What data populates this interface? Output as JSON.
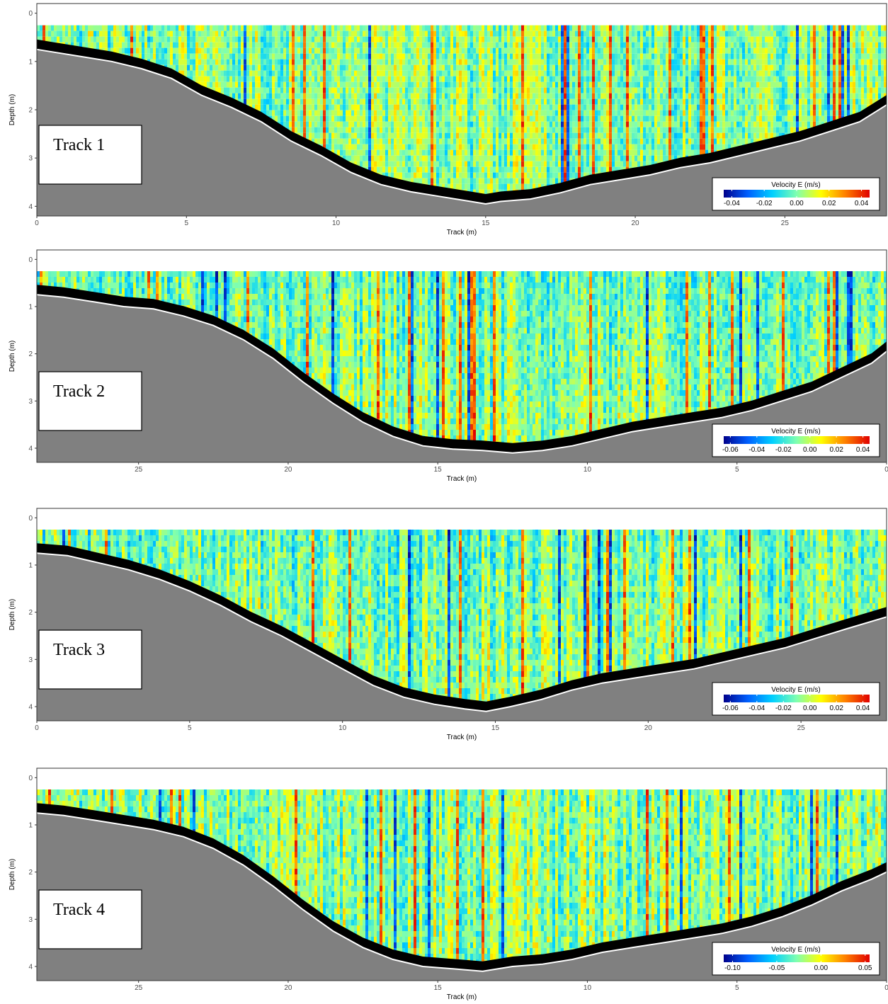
{
  "chart_data": [
    {
      "type": "heatmap",
      "panel_label": "Track 1",
      "xlabel": "Track (m)",
      "ylabel": "Depth (m)",
      "xlim": [
        0,
        28.4
      ],
      "x_reversed": false,
      "ylim": [
        4.2,
        -0.2
      ],
      "x_ticks": [
        0,
        5,
        10,
        15,
        20,
        25
      ],
      "y_ticks": [
        0,
        1,
        2,
        3,
        4
      ],
      "legend_position": "bottom-right",
      "colorbar": {
        "title": "Velocity E (m/s)",
        "min": -0.045,
        "max": 0.045,
        "ticks": [
          "-0.04",
          "-0.02",
          "0.00",
          "0.02",
          "0.04"
        ],
        "tick_values": [
          -0.04,
          -0.02,
          0.0,
          0.02,
          0.04
        ],
        "colormap": [
          "#00008b",
          "#0060ff",
          "#00d0ff",
          "#7fffb0",
          "#ffff00",
          "#ff8000",
          "#e00000"
        ]
      },
      "surface_depth": 0.25,
      "bottom_profile": {
        "x": [
          0,
          0.5,
          1.5,
          2.5,
          3.5,
          4.5,
          5.5,
          6.5,
          7.5,
          8.5,
          9.5,
          10.5,
          11.5,
          12.5,
          13.5,
          14.5,
          15.0,
          15.5,
          16.5,
          17.5,
          18.5,
          19.5,
          20.5,
          21.5,
          22.5,
          23.5,
          24.5,
          25.5,
          26.5,
          27.5,
          28.4
        ],
        "depth": [
          0.75,
          0.8,
          0.9,
          1.0,
          1.15,
          1.35,
          1.7,
          1.95,
          2.25,
          2.65,
          2.95,
          3.3,
          3.55,
          3.7,
          3.8,
          3.9,
          3.95,
          3.9,
          3.85,
          3.72,
          3.55,
          3.45,
          3.35,
          3.2,
          3.1,
          2.95,
          2.8,
          2.65,
          2.45,
          2.25,
          1.9
        ]
      }
    },
    {
      "type": "heatmap",
      "panel_label": "Track 2",
      "xlabel": "Track (m)",
      "ylabel": "Depth (m)",
      "xlim": [
        28.4,
        0
      ],
      "x_reversed": true,
      "ylim": [
        4.3,
        -0.2
      ],
      "x_ticks": [
        25,
        20,
        15,
        10,
        5,
        0
      ],
      "y_ticks": [
        0,
        1,
        2,
        3,
        4
      ],
      "legend_position": "bottom-right",
      "colorbar": {
        "title": "Velocity E (m/s)",
        "min": -0.065,
        "max": 0.045,
        "ticks": [
          "-0.06",
          "-0.04",
          "-0.02",
          "0.00",
          "0.02",
          "0.04"
        ],
        "tick_values": [
          -0.06,
          -0.04,
          -0.02,
          0.0,
          0.02,
          0.04
        ],
        "colormap": [
          "#00008b",
          "#0060ff",
          "#00d0ff",
          "#7fffb0",
          "#ffff00",
          "#ff8000",
          "#e00000"
        ]
      },
      "surface_depth": 0.25,
      "bottom_profile": {
        "x": [
          28.4,
          27.5,
          26.5,
          25.5,
          24.5,
          23.5,
          22.5,
          21.5,
          20.5,
          19.5,
          18.5,
          17.5,
          16.5,
          15.5,
          14.5,
          13.5,
          12.5,
          11.5,
          10.5,
          9.5,
          8.5,
          7.5,
          6.5,
          5.5,
          4.5,
          3.5,
          2.5,
          1.5,
          0.5,
          0
        ],
        "depth": [
          0.75,
          0.8,
          0.9,
          1.0,
          1.05,
          1.2,
          1.4,
          1.7,
          2.1,
          2.6,
          3.05,
          3.45,
          3.75,
          3.95,
          4.02,
          4.05,
          4.1,
          4.05,
          3.95,
          3.8,
          3.65,
          3.55,
          3.45,
          3.35,
          3.2,
          3.0,
          2.8,
          2.5,
          2.2,
          1.95
        ]
      }
    },
    {
      "type": "heatmap",
      "panel_label": "Track 3",
      "xlabel": "Track (m)",
      "ylabel": "Depth (m)",
      "xlim": [
        0,
        27.8
      ],
      "x_reversed": false,
      "ylim": [
        4.3,
        -0.2
      ],
      "x_ticks": [
        0,
        5,
        10,
        15,
        20,
        25
      ],
      "y_ticks": [
        0,
        1,
        2,
        3,
        4
      ],
      "legend_position": "bottom-right",
      "colorbar": {
        "title": "Velocity E (m/s)",
        "min": -0.065,
        "max": 0.045,
        "ticks": [
          "-0.06",
          "-0.04",
          "-0.02",
          "0.00",
          "0.02",
          "0.04"
        ],
        "tick_values": [
          -0.06,
          -0.04,
          -0.02,
          0.0,
          0.02,
          0.04
        ],
        "colormap": [
          "#00008b",
          "#0060ff",
          "#00d0ff",
          "#7fffb0",
          "#ffff00",
          "#ff8000",
          "#e00000"
        ]
      },
      "surface_depth": 0.25,
      "bottom_profile": {
        "x": [
          0,
          1,
          2,
          3,
          4,
          5,
          6,
          7,
          8,
          9,
          10,
          11,
          12,
          13,
          14,
          14.7,
          15.5,
          16.5,
          17.5,
          18.5,
          19.5,
          20.5,
          21.5,
          22.5,
          23.5,
          24.5,
          25.5,
          26.5,
          27.8
        ],
        "depth": [
          0.75,
          0.8,
          0.95,
          1.1,
          1.3,
          1.55,
          1.85,
          2.2,
          2.5,
          2.85,
          3.2,
          3.55,
          3.8,
          3.95,
          4.05,
          4.1,
          4.0,
          3.85,
          3.65,
          3.5,
          3.4,
          3.3,
          3.2,
          3.05,
          2.9,
          2.75,
          2.55,
          2.35,
          2.1
        ]
      }
    },
    {
      "type": "heatmap",
      "panel_label": "Track 4",
      "xlabel": "Track (m)",
      "ylabel": "Depth (m)",
      "xlim": [
        28.4,
        0
      ],
      "x_reversed": true,
      "ylim": [
        4.3,
        -0.2
      ],
      "x_ticks": [
        25,
        20,
        15,
        10,
        5,
        0
      ],
      "y_ticks": [
        0,
        1,
        2,
        3,
        4
      ],
      "legend_position": "bottom-right",
      "colorbar": {
        "title": "Velocity E (m/s)",
        "min": -0.11,
        "max": 0.055,
        "ticks": [
          "-0.10",
          "-0.05",
          "0.00",
          "0.05"
        ],
        "tick_values": [
          -0.1,
          -0.05,
          0.0,
          0.05
        ],
        "colormap": [
          "#00008b",
          "#0060ff",
          "#00d0ff",
          "#7fffb0",
          "#ffff00",
          "#ff8000",
          "#e00000"
        ]
      },
      "surface_depth": 0.25,
      "bottom_profile": {
        "x": [
          28.4,
          27.5,
          26.5,
          25.5,
          24.5,
          23.5,
          22.5,
          21.5,
          20.5,
          19.5,
          18.5,
          17.5,
          16.5,
          15.5,
          14.5,
          13.5,
          12.5,
          11.5,
          10.5,
          9.5,
          8.5,
          7.5,
          6.5,
          5.5,
          4.5,
          3.5,
          2.5,
          1.5,
          0.5,
          0
        ],
        "depth": [
          0.75,
          0.8,
          0.9,
          1.0,
          1.1,
          1.25,
          1.5,
          1.85,
          2.3,
          2.8,
          3.25,
          3.6,
          3.85,
          4.0,
          4.05,
          4.1,
          4.0,
          3.95,
          3.85,
          3.7,
          3.6,
          3.5,
          3.4,
          3.3,
          3.15,
          2.95,
          2.7,
          2.4,
          2.15,
          2.0
        ]
      }
    }
  ]
}
